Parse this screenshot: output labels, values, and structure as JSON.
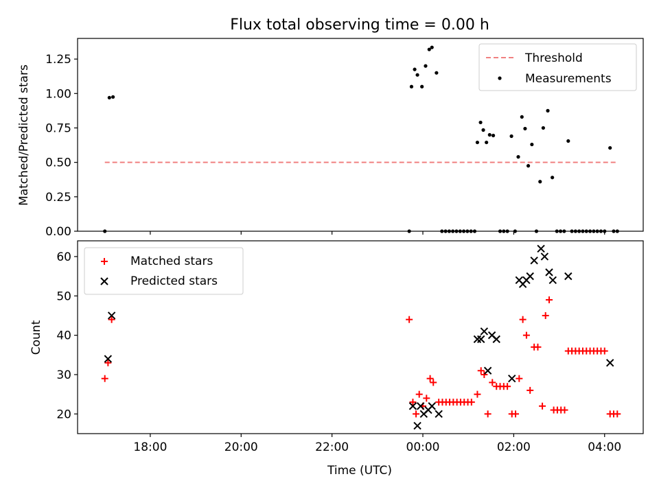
{
  "chart_data": [
    {
      "type": "scatter",
      "title": "Flux total observing time = 0.00 h",
      "xlabel": "",
      "ylabel": "Matched/Predicted stars",
      "xlim": [
        -7.6,
        4.85
      ],
      "ylim": [
        0,
        1.4
      ],
      "yticks": [
        0.0,
        0.25,
        0.5,
        0.75,
        1.0,
        1.25
      ],
      "ytick_labels": [
        "0.00",
        "0.25",
        "0.50",
        "0.75",
        "1.00",
        "1.25"
      ],
      "grid": false,
      "legend_position": "upper right",
      "threshold": {
        "name": "Threshold",
        "y": 0.5,
        "x_range": [
          -7.0,
          4.3
        ],
        "color": "#f08080"
      },
      "series": [
        {
          "name": "Measurements",
          "color": "#000000",
          "marker": "dot",
          "points": [
            [
              -7.0,
              0.0
            ],
            [
              -6.9,
              0.97
            ],
            [
              -6.82,
              0.975
            ],
            [
              -0.3,
              0.0
            ],
            [
              -0.25,
              1.05
            ],
            [
              -0.18,
              1.175
            ],
            [
              -0.12,
              1.135
            ],
            [
              -0.02,
              1.05
            ],
            [
              0.06,
              1.2
            ],
            [
              0.14,
              1.32
            ],
            [
              0.2,
              1.335
            ],
            [
              0.3,
              1.15
            ],
            [
              0.42,
              0.0
            ],
            [
              0.5,
              0.0
            ],
            [
              0.58,
              0.0
            ],
            [
              0.66,
              0.0
            ],
            [
              0.74,
              0.0
            ],
            [
              0.82,
              0.0
            ],
            [
              0.9,
              0.0
            ],
            [
              0.98,
              0.0
            ],
            [
              1.06,
              0.0
            ],
            [
              1.14,
              0.0
            ],
            [
              1.2,
              0.645
            ],
            [
              1.27,
              0.79
            ],
            [
              1.33,
              0.735
            ],
            [
              1.4,
              0.645
            ],
            [
              1.47,
              0.7
            ],
            [
              1.55,
              0.695
            ],
            [
              1.7,
              0.0
            ],
            [
              1.78,
              0.0
            ],
            [
              1.86,
              0.0
            ],
            [
              1.95,
              0.69
            ],
            [
              2.03,
              0.0
            ],
            [
              2.1,
              0.54
            ],
            [
              2.18,
              0.83
            ],
            [
              2.25,
              0.745
            ],
            [
              2.32,
              0.475
            ],
            [
              2.4,
              0.63
            ],
            [
              2.5,
              0.0
            ],
            [
              2.58,
              0.36
            ],
            [
              2.65,
              0.75
            ],
            [
              2.75,
              0.875
            ],
            [
              2.85,
              0.39
            ],
            [
              2.95,
              0.0
            ],
            [
              3.03,
              0.0
            ],
            [
              3.11,
              0.0
            ],
            [
              3.2,
              0.655
            ],
            [
              3.28,
              0.0
            ],
            [
              3.36,
              0.0
            ],
            [
              3.44,
              0.0
            ],
            [
              3.52,
              0.0
            ],
            [
              3.6,
              0.0
            ],
            [
              3.68,
              0.0
            ],
            [
              3.76,
              0.0
            ],
            [
              3.84,
              0.0
            ],
            [
              3.92,
              0.0
            ],
            [
              4.0,
              0.0
            ],
            [
              4.12,
              0.605
            ],
            [
              4.2,
              0.0
            ],
            [
              4.28,
              0.0
            ]
          ]
        }
      ]
    },
    {
      "type": "scatter",
      "title": "",
      "xlabel": "Time (UTC)",
      "ylabel": "Count",
      "xlim": [
        -7.6,
        4.85
      ],
      "ylim": [
        15,
        64
      ],
      "yticks": [
        20,
        30,
        40,
        50,
        60
      ],
      "ytick_labels": [
        "20",
        "30",
        "40",
        "50",
        "60"
      ],
      "xticks": [
        -6,
        -4,
        -2,
        0,
        2,
        4
      ],
      "xtick_labels": [
        "18:00",
        "20:00",
        "22:00",
        "00:00",
        "02:00",
        "04:00"
      ],
      "grid": false,
      "legend_position": "upper left",
      "series": [
        {
          "name": "Matched stars",
          "color": "#ff0000",
          "marker": "plus",
          "points": [
            [
              -7.0,
              29
            ],
            [
              -6.93,
              33
            ],
            [
              -6.85,
              44
            ],
            [
              -0.3,
              44
            ],
            [
              -0.22,
              23
            ],
            [
              -0.15,
              20
            ],
            [
              -0.08,
              25
            ],
            [
              0.0,
              22
            ],
            [
              0.08,
              24
            ],
            [
              0.16,
              29
            ],
            [
              0.23,
              28
            ],
            [
              0.35,
              23
            ],
            [
              0.43,
              23
            ],
            [
              0.51,
              23
            ],
            [
              0.59,
              23
            ],
            [
              0.67,
              23
            ],
            [
              0.75,
              23
            ],
            [
              0.83,
              23
            ],
            [
              0.91,
              23
            ],
            [
              0.99,
              23
            ],
            [
              1.07,
              23
            ],
            [
              1.2,
              25
            ],
            [
              1.28,
              31
            ],
            [
              1.35,
              30
            ],
            [
              1.43,
              20
            ],
            [
              1.53,
              28
            ],
            [
              1.62,
              27
            ],
            [
              1.7,
              27
            ],
            [
              1.78,
              27
            ],
            [
              1.86,
              27
            ],
            [
              1.96,
              20
            ],
            [
              2.04,
              20
            ],
            [
              2.12,
              29
            ],
            [
              2.2,
              44
            ],
            [
              2.28,
              40
            ],
            [
              2.36,
              26
            ],
            [
              2.45,
              37
            ],
            [
              2.53,
              37
            ],
            [
              2.63,
              22
            ],
            [
              2.7,
              45
            ],
            [
              2.78,
              49
            ],
            [
              2.88,
              21
            ],
            [
              2.96,
              21
            ],
            [
              3.04,
              21
            ],
            [
              3.12,
              21
            ],
            [
              3.2,
              36
            ],
            [
              3.28,
              36
            ],
            [
              3.36,
              36
            ],
            [
              3.44,
              36
            ],
            [
              3.52,
              36
            ],
            [
              3.6,
              36
            ],
            [
              3.68,
              36
            ],
            [
              3.76,
              36
            ],
            [
              3.84,
              36
            ],
            [
              3.92,
              36
            ],
            [
              4.0,
              36
            ],
            [
              4.12,
              20
            ],
            [
              4.2,
              20
            ],
            [
              4.28,
              20
            ]
          ]
        },
        {
          "name": "Predicted stars",
          "color": "#000000",
          "marker": "cross",
          "points": [
            [
              -6.93,
              34
            ],
            [
              -6.85,
              45
            ],
            [
              -0.22,
              22
            ],
            [
              -0.12,
              17
            ],
            [
              -0.05,
              22
            ],
            [
              0.02,
              20
            ],
            [
              0.12,
              21
            ],
            [
              0.2,
              22
            ],
            [
              0.35,
              20
            ],
            [
              1.2,
              39
            ],
            [
              1.28,
              39
            ],
            [
              1.35,
              41
            ],
            [
              1.43,
              31
            ],
            [
              1.52,
              40
            ],
            [
              1.62,
              39
            ],
            [
              1.96,
              29
            ],
            [
              2.12,
              54
            ],
            [
              2.2,
              53
            ],
            [
              2.28,
              54
            ],
            [
              2.36,
              55
            ],
            [
              2.45,
              59
            ],
            [
              2.6,
              62
            ],
            [
              2.68,
              60
            ],
            [
              2.78,
              56
            ],
            [
              2.86,
              54
            ],
            [
              3.2,
              55
            ],
            [
              4.12,
              33
            ]
          ]
        }
      ]
    }
  ]
}
